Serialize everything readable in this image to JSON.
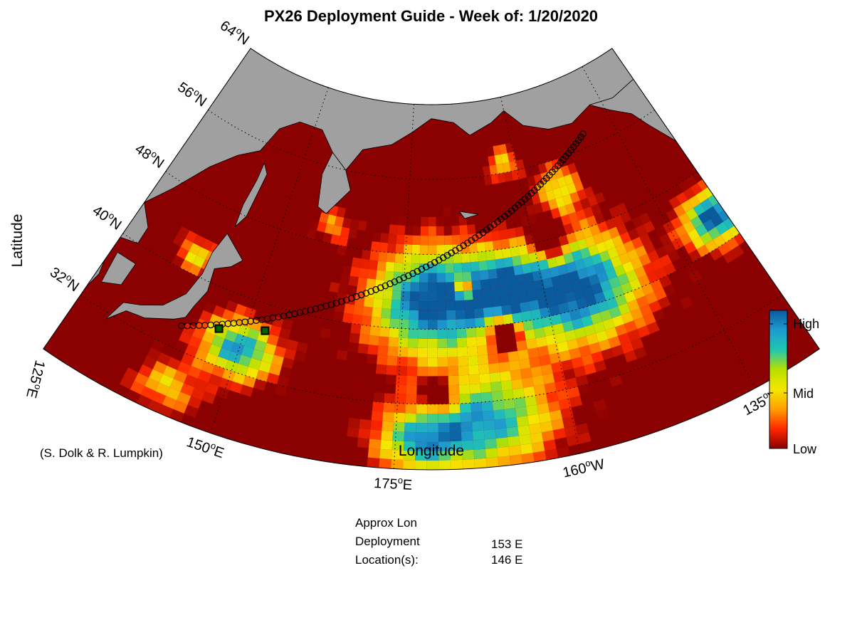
{
  "title": "PX26 Deployment Guide - Week of: 1/20/2020",
  "credit": "(S. Dolk & R. Lumpkin)",
  "axes": {
    "xlabel": "Longitude",
    "ylabel": "Latitude",
    "lat_ticks": [
      {
        "deg": "32",
        "hemi": "N"
      },
      {
        "deg": "40",
        "hemi": "N"
      },
      {
        "deg": "48",
        "hemi": "N"
      },
      {
        "deg": "56",
        "hemi": "N"
      },
      {
        "deg": "64",
        "hemi": "N"
      }
    ],
    "lon_ticks": [
      {
        "deg": "125",
        "hemi": "E"
      },
      {
        "deg": "150",
        "hemi": "E"
      },
      {
        "deg": "175",
        "hemi": "E"
      },
      {
        "deg": "160",
        "hemi": "W"
      },
      {
        "deg": "135",
        "hemi": "W"
      }
    ]
  },
  "colorbar": {
    "labels": [
      "High",
      "Mid",
      "Low"
    ],
    "colors": [
      "#0a5a9e",
      "#1e9bd0",
      "#20c7b0",
      "#b8e000",
      "#f4e600",
      "#ffa000",
      "#ff2800",
      "#8b0000"
    ]
  },
  "colors": {
    "land": "#a0a0a0",
    "low": "#8b0000",
    "track_marker": "#000000",
    "deployment_marker": "#006400"
  },
  "deployment": {
    "rows": [
      {
        "label": "Approx Lon",
        "value": ""
      },
      {
        "label": "Deployment",
        "value": "153 E"
      },
      {
        "label": "Location(s):",
        "value": "146 E"
      }
    ]
  },
  "chart_data": {
    "type": "heatmap",
    "title": "PX26 Deployment Guide - Week of: 1/20/2020",
    "xlabel": "Longitude",
    "ylabel": "Latitude",
    "projection": "conic",
    "lon_range": [
      125,
      235
    ],
    "lat_range": [
      25,
      64
    ],
    "colorbar_levels": [
      "Low",
      "Mid",
      "High"
    ],
    "track": {
      "start": {
        "lon": 140.5,
        "lat": 34.5
      },
      "end": {
        "lon": 217.5,
        "lat": 57.5
      },
      "n_points": 95
    },
    "deployment_points": [
      {
        "lon": 153,
        "lat": 37.2
      },
      {
        "lon": 146,
        "lat": 35.8
      }
    ],
    "high_regions": [
      {
        "lon": 180,
        "lat": 43
      },
      {
        "lon": 205,
        "lat": 42
      },
      {
        "lon": 150,
        "lat": 34
      },
      {
        "lon": 188,
        "lat": 30
      },
      {
        "lon": 232,
        "lat": 42
      }
    ]
  }
}
